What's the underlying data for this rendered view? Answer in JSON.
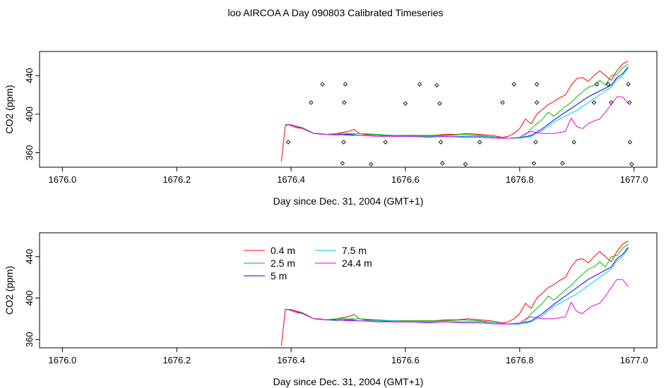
{
  "figure": {
    "title": "loo AIRCOA A  Day 090803  Calibrated Timeseries"
  },
  "chart_data": [
    {
      "type": "line",
      "panel": "top",
      "xlabel": "Day since Dec. 31, 2004 (GMT+1)",
      "ylabel": "CO2 (ppm)",
      "xlim": [
        1675.96,
        1677.04
      ],
      "ylim": [
        345,
        465
      ],
      "x_ticks": [
        "1676.0",
        "1676.2",
        "1676.4",
        "1676.6",
        "1676.8",
        "1677.0"
      ],
      "x_tick_values": [
        1676.0,
        1676.2,
        1676.4,
        1676.6,
        1676.8,
        1677.0
      ],
      "y_ticks": [
        "360",
        "400",
        "440"
      ],
      "y_tick_values": [
        360,
        400,
        440
      ],
      "grid": false,
      "legend": "none",
      "series": [
        {
          "color": "#ff0000",
          "x": [
            1676.383,
            1676.39,
            1676.395,
            1676.4,
            1676.41,
            1676.42,
            1676.43,
            1676.44,
            1676.45,
            1676.46,
            1676.47,
            1676.48,
            1676.49,
            1676.5,
            1676.51,
            1676.52,
            1676.53,
            1676.55,
            1676.57,
            1676.59,
            1676.61,
            1676.63,
            1676.65,
            1676.67,
            1676.69,
            1676.71,
            1676.73,
            1676.75,
            1676.77,
            1676.78,
            1676.79,
            1676.8,
            1676.81,
            1676.82,
            1676.83,
            1676.84,
            1676.85,
            1676.86,
            1676.87,
            1676.88,
            1676.89,
            1676.9,
            1676.91,
            1676.92,
            1676.93,
            1676.94,
            1676.95,
            1676.96,
            1676.97,
            1676.98,
            1676.99
          ],
          "y": [
            351,
            388,
            389,
            388,
            386,
            385,
            383,
            380,
            380,
            379,
            379,
            380,
            381,
            382,
            384,
            380,
            379,
            379,
            378,
            378,
            378,
            378,
            378,
            379,
            379,
            380,
            379,
            378,
            376,
            377,
            380,
            385,
            395,
            390,
            400,
            405,
            410,
            413,
            417,
            420,
            430,
            437,
            438,
            434,
            440,
            445,
            440,
            435,
            445,
            452,
            455
          ]
        },
        {
          "color": "#00bb00",
          "x": [
            1676.39,
            1676.4,
            1676.42,
            1676.44,
            1676.46,
            1676.48,
            1676.5,
            1676.52,
            1676.55,
            1676.58,
            1676.61,
            1676.64,
            1676.67,
            1676.7,
            1676.73,
            1676.76,
            1676.78,
            1676.8,
            1676.81,
            1676.82,
            1676.83,
            1676.84,
            1676.85,
            1676.86,
            1676.87,
            1676.88,
            1676.89,
            1676.9,
            1676.91,
            1676.92,
            1676.93,
            1676.94,
            1676.95,
            1676.96,
            1676.97,
            1676.98,
            1676.99
          ],
          "y": [
            389,
            389,
            386,
            380,
            379,
            380,
            380,
            380,
            379,
            378,
            378,
            378,
            378,
            379,
            378,
            376,
            375,
            375,
            378,
            385,
            390,
            395,
            402,
            398,
            403,
            408,
            412,
            418,
            423,
            428,
            430,
            435,
            430,
            440,
            441,
            448,
            452
          ]
        },
        {
          "color": "#0000ff",
          "x": [
            1676.39,
            1676.4,
            1676.42,
            1676.44,
            1676.46,
            1676.48,
            1676.5,
            1676.52,
            1676.55,
            1676.58,
            1676.61,
            1676.64,
            1676.67,
            1676.7,
            1676.73,
            1676.76,
            1676.78,
            1676.8,
            1676.82,
            1676.84,
            1676.86,
            1676.88,
            1676.9,
            1676.92,
            1676.94,
            1676.96,
            1676.97,
            1676.98,
            1676.99
          ],
          "y": [
            389,
            389,
            385,
            380,
            379,
            379,
            379,
            378,
            378,
            377,
            377,
            377,
            377,
            377,
            377,
            376,
            375,
            375,
            378,
            385,
            394,
            402,
            410,
            418,
            424,
            430,
            438,
            442,
            449
          ]
        },
        {
          "color": "#00cccc",
          "x": [
            1676.39,
            1676.4,
            1676.42,
            1676.44,
            1676.46,
            1676.48,
            1676.5,
            1676.52,
            1676.55,
            1676.58,
            1676.61,
            1676.64,
            1676.67,
            1676.7,
            1676.73,
            1676.76,
            1676.78,
            1676.8,
            1676.82,
            1676.84,
            1676.86,
            1676.88,
            1676.9,
            1676.92,
            1676.94,
            1676.96,
            1676.97,
            1676.98,
            1676.99
          ],
          "y": [
            389,
            389,
            385,
            380,
            379,
            378,
            380,
            378,
            378,
            378,
            377,
            377,
            377,
            377,
            377,
            376,
            375,
            375,
            377,
            383,
            392,
            398,
            404,
            412,
            420,
            428,
            436,
            440,
            448
          ]
        },
        {
          "color": "#ee00ee",
          "x": [
            1676.39,
            1676.4,
            1676.42,
            1676.44,
            1676.46,
            1676.48,
            1676.5,
            1676.52,
            1676.55,
            1676.58,
            1676.61,
            1676.64,
            1676.67,
            1676.7,
            1676.73,
            1676.76,
            1676.78,
            1676.8,
            1676.81,
            1676.82,
            1676.84,
            1676.86,
            1676.87,
            1676.88,
            1676.89,
            1676.9,
            1676.91,
            1676.92,
            1676.93,
            1676.94,
            1676.95,
            1676.96,
            1676.97,
            1676.98,
            1676.99
          ],
          "y": [
            389,
            389,
            385,
            380,
            379,
            379,
            378,
            378,
            377,
            377,
            377,
            376,
            377,
            376,
            376,
            375,
            375,
            376,
            380,
            382,
            380,
            380,
            381,
            382,
            396,
            387,
            385,
            390,
            393,
            395,
            402,
            410,
            418,
            418,
            411
          ]
        }
      ],
      "points": {
        "marker": "open-diamond",
        "x": [
          1676.395,
          1676.435,
          1676.455,
          1676.49,
          1676.492,
          1676.493,
          1676.495,
          1676.54,
          1676.565,
          1676.6,
          1676.625,
          1676.655,
          1676.66,
          1676.662,
          1676.665,
          1676.705,
          1676.73,
          1676.77,
          1676.79,
          1676.825,
          1676.828,
          1676.83,
          1676.83,
          1676.875,
          1676.895,
          1676.93,
          1676.935,
          1676.955,
          1676.96,
          1676.99,
          1676.992,
          1676.993,
          1676.996
        ],
        "y": [
          371,
          412,
          431,
          349,
          371,
          412,
          431,
          348,
          371,
          411,
          431,
          430,
          411,
          371,
          349,
          348,
          371,
          412,
          431,
          349,
          371,
          412,
          431,
          349,
          371,
          412,
          431,
          431,
          412,
          431,
          412,
          371,
          348
        ]
      }
    },
    {
      "type": "line",
      "panel": "bottom",
      "xlabel": "Day since Dec. 31, 2004 (GMT+1)",
      "ylabel": "CO2 (ppm)",
      "xlim": [
        1675.96,
        1677.04
      ],
      "ylim": [
        352,
        463
      ],
      "x_ticks": [
        "1676.0",
        "1676.2",
        "1676.4",
        "1676.6",
        "1676.8",
        "1677.0"
      ],
      "x_tick_values": [
        1676.0,
        1676.2,
        1676.4,
        1676.6,
        1676.8,
        1677.0
      ],
      "y_ticks": [
        "360",
        "400",
        "440"
      ],
      "y_tick_values": [
        360,
        400,
        440
      ],
      "grid": false,
      "legend": "top-center",
      "series": [
        {
          "name": "0.4 m",
          "color": "#ff0000",
          "x": [
            1676.383,
            1676.39,
            1676.395,
            1676.4,
            1676.41,
            1676.42,
            1676.43,
            1676.44,
            1676.45,
            1676.46,
            1676.47,
            1676.48,
            1676.49,
            1676.5,
            1676.51,
            1676.52,
            1676.53,
            1676.55,
            1676.57,
            1676.59,
            1676.61,
            1676.63,
            1676.65,
            1676.67,
            1676.69,
            1676.71,
            1676.73,
            1676.75,
            1676.77,
            1676.78,
            1676.79,
            1676.8,
            1676.81,
            1676.82,
            1676.83,
            1676.84,
            1676.85,
            1676.86,
            1676.87,
            1676.88,
            1676.89,
            1676.9,
            1676.91,
            1676.92,
            1676.93,
            1676.94,
            1676.95,
            1676.96,
            1676.97,
            1676.98,
            1676.99
          ],
          "y": [
            354,
            389,
            389,
            388,
            386,
            385,
            383,
            380,
            380,
            379,
            379,
            380,
            381,
            382,
            384,
            380,
            379,
            379,
            378,
            378,
            378,
            378,
            378,
            379,
            379,
            380,
            379,
            378,
            376,
            377,
            380,
            385,
            395,
            390,
            400,
            405,
            410,
            413,
            417,
            420,
            430,
            437,
            438,
            434,
            440,
            445,
            440,
            435,
            445,
            452,
            455
          ]
        },
        {
          "name": "2.5 m",
          "color": "#00bb00",
          "x": [
            1676.39,
            1676.4,
            1676.42,
            1676.44,
            1676.46,
            1676.48,
            1676.5,
            1676.52,
            1676.55,
            1676.58,
            1676.61,
            1676.64,
            1676.67,
            1676.7,
            1676.73,
            1676.76,
            1676.78,
            1676.8,
            1676.81,
            1676.82,
            1676.83,
            1676.84,
            1676.85,
            1676.86,
            1676.87,
            1676.88,
            1676.89,
            1676.9,
            1676.91,
            1676.92,
            1676.93,
            1676.94,
            1676.95,
            1676.96,
            1676.97,
            1676.98,
            1676.99
          ],
          "y": [
            389,
            389,
            386,
            380,
            379,
            380,
            380,
            380,
            379,
            378,
            378,
            378,
            378,
            379,
            378,
            376,
            375,
            375,
            378,
            385,
            390,
            395,
            402,
            398,
            403,
            408,
            412,
            418,
            423,
            428,
            430,
            435,
            430,
            440,
            441,
            448,
            452
          ]
        },
        {
          "name": "5 m",
          "color": "#0000ff",
          "x": [
            1676.39,
            1676.4,
            1676.42,
            1676.44,
            1676.46,
            1676.48,
            1676.5,
            1676.52,
            1676.55,
            1676.58,
            1676.61,
            1676.64,
            1676.67,
            1676.7,
            1676.73,
            1676.76,
            1676.78,
            1676.8,
            1676.82,
            1676.84,
            1676.86,
            1676.88,
            1676.9,
            1676.92,
            1676.94,
            1676.96,
            1676.97,
            1676.98,
            1676.99
          ],
          "y": [
            389,
            389,
            385,
            380,
            379,
            379,
            379,
            378,
            378,
            377,
            377,
            377,
            377,
            377,
            377,
            376,
            375,
            375,
            378,
            385,
            394,
            402,
            410,
            418,
            424,
            430,
            438,
            442,
            449
          ]
        },
        {
          "name": "7.5 m",
          "color": "#00cccc",
          "x": [
            1676.39,
            1676.4,
            1676.42,
            1676.44,
            1676.46,
            1676.48,
            1676.5,
            1676.52,
            1676.55,
            1676.58,
            1676.61,
            1676.64,
            1676.67,
            1676.7,
            1676.73,
            1676.76,
            1676.78,
            1676.8,
            1676.82,
            1676.84,
            1676.86,
            1676.88,
            1676.9,
            1676.92,
            1676.94,
            1676.96,
            1676.97,
            1676.98,
            1676.99
          ],
          "y": [
            389,
            389,
            385,
            380,
            379,
            378,
            380,
            378,
            378,
            378,
            377,
            377,
            377,
            377,
            377,
            376,
            375,
            375,
            377,
            383,
            392,
            398,
            404,
            412,
            420,
            428,
            436,
            440,
            448
          ]
        },
        {
          "name": "24.4 m",
          "color": "#ee00ee",
          "x": [
            1676.39,
            1676.4,
            1676.42,
            1676.44,
            1676.46,
            1676.48,
            1676.5,
            1676.52,
            1676.55,
            1676.58,
            1676.61,
            1676.64,
            1676.67,
            1676.7,
            1676.73,
            1676.76,
            1676.78,
            1676.8,
            1676.81,
            1676.82,
            1676.84,
            1676.86,
            1676.87,
            1676.88,
            1676.89,
            1676.9,
            1676.91,
            1676.92,
            1676.93,
            1676.94,
            1676.95,
            1676.96,
            1676.97,
            1676.98,
            1676.99
          ],
          "y": [
            389,
            389,
            385,
            380,
            379,
            379,
            378,
            378,
            377,
            377,
            377,
            376,
            377,
            376,
            376,
            375,
            375,
            376,
            380,
            382,
            380,
            380,
            381,
            382,
            396,
            387,
            385,
            390,
            393,
            395,
            402,
            410,
            418,
            418,
            411
          ]
        }
      ]
    }
  ]
}
